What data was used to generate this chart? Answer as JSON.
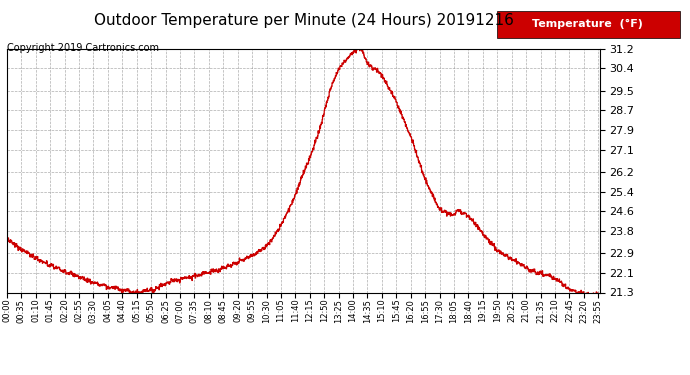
{
  "title": "Outdoor Temperature per Minute (24 Hours) 20191216",
  "copyright": "Copyright 2019 Cartronics.com",
  "legend_label": "Temperature  (°F)",
  "line_color": "#cc0000",
  "background_color": "#ffffff",
  "grid_color": "#999999",
  "ylim": [
    21.3,
    31.2
  ],
  "yticks": [
    21.3,
    22.1,
    22.9,
    23.8,
    24.6,
    25.4,
    26.2,
    27.1,
    27.9,
    28.7,
    29.5,
    30.4,
    31.2
  ],
  "title_fontsize": 11,
  "copyright_fontsize": 7,
  "ytick_fontsize": 8,
  "xtick_fontsize": 6
}
